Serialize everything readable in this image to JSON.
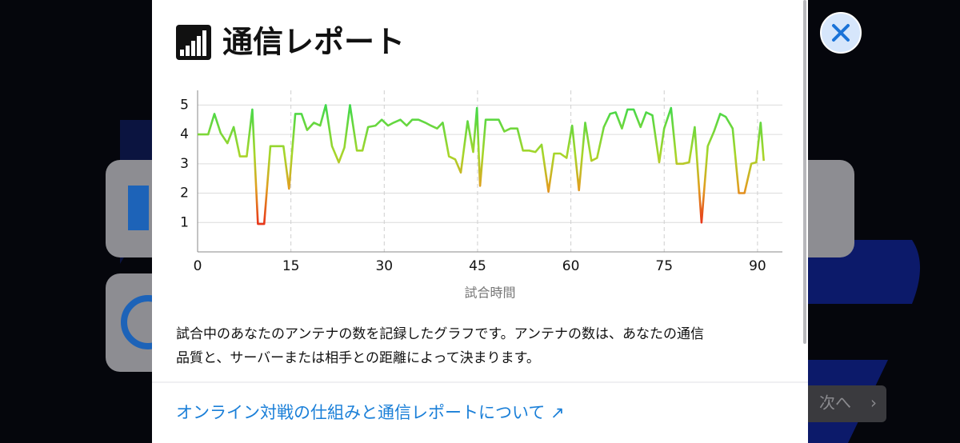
{
  "title": "通信レポート",
  "chart_data": {
    "type": "line",
    "x": [
      0,
      1.7,
      2.7,
      3.7,
      4.8,
      5.8,
      6.8,
      7.9,
      8.8,
      9.7,
      10.7,
      11.7,
      12.7,
      13.8,
      14.7,
      15.7,
      16.7,
      17.6,
      18.7,
      19.7,
      20.6,
      21.6,
      22.7,
      23.6,
      24.5,
      25.6,
      26.5,
      27.4,
      28.6,
      29.6,
      30.6,
      31.5,
      32.6,
      33.6,
      34.5,
      35.5,
      36.6,
      37.5,
      38.5,
      39.4,
      40.4,
      41.4,
      42.3,
      43.4,
      44.3,
      44.9,
      45.4,
      46.3,
      47.4,
      48.4,
      49.3,
      50.3,
      51.4,
      52.3,
      53.3,
      54.3,
      55.3,
      56.4,
      57.3,
      58.3,
      59.3,
      60.2,
      61.3,
      62.3,
      63.3,
      64.2,
      65.3,
      66.3,
      67.2,
      68.2,
      69.1,
      70.1,
      71.2,
      72.1,
      73.1,
      74.2,
      75.0,
      76.1,
      77.0,
      78.0,
      79.0,
      79.9,
      81.0,
      82.0,
      83.0,
      84.0,
      84.9,
      86.0,
      87.0,
      87.9,
      89.0,
      89.8,
      90.5,
      91.0
    ],
    "values": [
      4.0,
      4.0,
      4.7,
      4.05,
      3.7,
      4.25,
      3.25,
      3.25,
      4.85,
      0.95,
      0.95,
      3.6,
      3.6,
      3.6,
      2.15,
      4.7,
      4.7,
      4.15,
      4.4,
      4.3,
      5.0,
      3.6,
      3.05,
      3.55,
      5.0,
      3.45,
      3.45,
      4.25,
      4.3,
      4.5,
      4.3,
      4.4,
      4.5,
      4.3,
      4.5,
      4.5,
      4.4,
      4.3,
      4.2,
      4.4,
      3.25,
      3.15,
      2.7,
      4.45,
      3.4,
      4.9,
      2.25,
      4.5,
      4.5,
      4.5,
      4.1,
      4.2,
      4.2,
      3.45,
      3.45,
      3.4,
      3.65,
      2.05,
      3.35,
      3.35,
      3.2,
      4.3,
      2.1,
      4.4,
      3.1,
      3.2,
      4.25,
      4.7,
      4.75,
      4.2,
      4.85,
      4.85,
      4.25,
      4.75,
      4.65,
      3.05,
      4.2,
      4.9,
      3.0,
      3.0,
      3.05,
      4.25,
      1.0,
      3.6,
      4.1,
      4.7,
      4.6,
      4.2,
      2.0,
      2.0,
      3.0,
      3.05,
      4.4,
      3.1
    ],
    "xlim": [
      0,
      94
    ],
    "ylim": [
      0,
      5.5
    ],
    "xticks": [
      0,
      15,
      30,
      45,
      60,
      75,
      90
    ],
    "yticks": [
      1,
      2,
      3,
      4,
      5
    ],
    "xlabel": "試合時間",
    "grid": true,
    "gradient": [
      {
        "value": 5,
        "color": "#3fd84c"
      },
      {
        "value": 3.3,
        "color": "#a8d62a"
      },
      {
        "value": 2.2,
        "color": "#e0a020"
      },
      {
        "value": 1,
        "color": "#e8381a"
      }
    ]
  },
  "description": [
    "試合中のあなたのアンテナの数を記録したグラフです。アンテナの数は、あなたの通信",
    "品質と、サーバーまたは相手との距離によって決まります。"
  ],
  "link": "オンライン対戦の仕組みと通信レポートについて ↗",
  "next_button": "次へ"
}
